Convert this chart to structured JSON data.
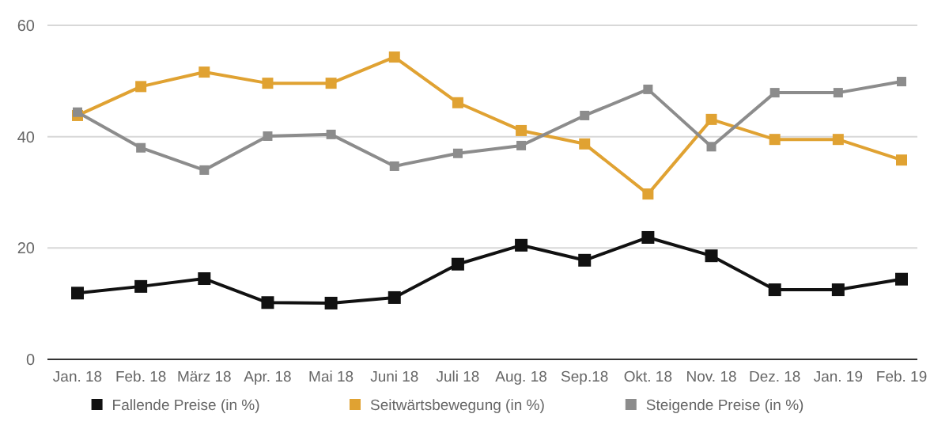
{
  "chart_data": {
    "type": "line",
    "categories": [
      "Jan. 18",
      "Feb. 18",
      "März 18",
      "Apr. 18",
      "Mai 18",
      "Juni 18",
      "Juli 18",
      "Aug. 18",
      "Sep.18",
      "Okt. 18",
      "Nov. 18",
      "Dez. 18",
      "Jan. 19",
      "Feb. 19"
    ],
    "series": [
      {
        "name": "Fallende Preise (in %)",
        "color": "#111111",
        "values": [
          11.9,
          13.1,
          14.5,
          10.2,
          10.1,
          11.1,
          17.1,
          20.5,
          17.8,
          21.9,
          18.6,
          12.5,
          12.5,
          14.4
        ]
      },
      {
        "name": "Seitwärtsbewegung (in %)",
        "color": "#e0a232",
        "values": [
          43.8,
          49.0,
          51.6,
          49.6,
          49.6,
          54.3,
          46.1,
          41.1,
          38.7,
          29.7,
          43.1,
          39.5,
          39.5,
          35.8
        ]
      },
      {
        "name": "Steigende Preise (in %)",
        "color": "#8c8c8c",
        "values": [
          44.4,
          38.0,
          34.0,
          40.1,
          40.4,
          34.7,
          37.0,
          38.4,
          43.8,
          48.5,
          38.2,
          47.9,
          47.9,
          49.9
        ]
      }
    ],
    "ylim": [
      0,
      60
    ],
    "yticks": [
      0,
      20,
      40,
      60
    ],
    "grid": "y",
    "legend": "bottom",
    "marker": "square",
    "line_style": "solid"
  }
}
